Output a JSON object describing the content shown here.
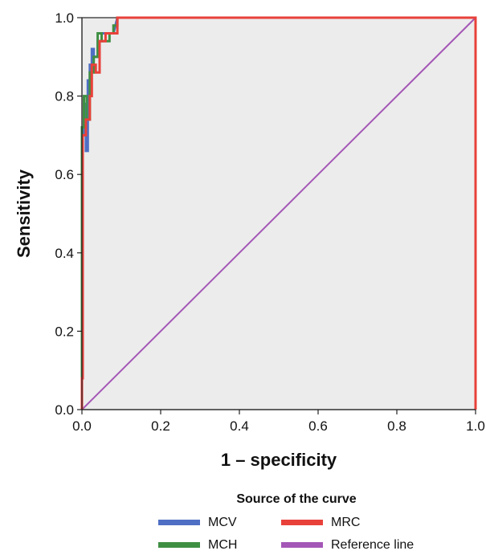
{
  "chart_data": {
    "type": "line",
    "xlabel": "1 – specificity",
    "ylabel": "Sensitivity",
    "xlim": [
      0,
      1
    ],
    "ylim": [
      0,
      1
    ],
    "x_ticks": [
      "0.0",
      "0.2",
      "0.4",
      "0.6",
      "0.8",
      "1.0"
    ],
    "y_ticks": [
      "0.0",
      "0.2",
      "0.4",
      "0.6",
      "0.8",
      "1.0"
    ],
    "grid": false,
    "legend_title": "Source of the curve",
    "legend_position": "bottom",
    "series": [
      {
        "name": "MCV",
        "color": "#4f6fc4",
        "x": [
          0,
          0,
          0.005,
          0.005,
          0.01,
          0.01,
          0.015,
          0.015,
          0.02,
          0.02,
          0.025,
          0.025,
          0.03,
          0.03,
          0.04,
          0.04,
          0.05,
          0.05,
          0.06,
          0.06,
          0.08,
          0.085,
          0.09,
          1.0
        ],
        "y": [
          0,
          0.7,
          0.7,
          0.78,
          0.78,
          0.66,
          0.66,
          0.84,
          0.84,
          0.88,
          0.88,
          0.92,
          0.92,
          0.9,
          0.9,
          0.94,
          0.94,
          0.96,
          0.96,
          0.96,
          0.96,
          0.98,
          1.0,
          1.0
        ]
      },
      {
        "name": "MCH",
        "color": "#3f8f43",
        "x": [
          0,
          0,
          0.005,
          0.005,
          0.012,
          0.012,
          0.02,
          0.02,
          0.03,
          0.03,
          0.04,
          0.04,
          0.05,
          0.05,
          0.07,
          0.07,
          0.08,
          0.08,
          0.09,
          0.09,
          1.0
        ],
        "y": [
          0,
          0.72,
          0.72,
          0.8,
          0.8,
          0.74,
          0.74,
          0.86,
          0.86,
          0.9,
          0.9,
          0.96,
          0.96,
          0.94,
          0.94,
          0.96,
          0.96,
          0.98,
          0.98,
          1.0,
          1.0
        ]
      },
      {
        "name": "MRC",
        "color": "#e8413a",
        "x": [
          0,
          0,
          0.002,
          0.002,
          0.01,
          0.01,
          0.02,
          0.02,
          0.025,
          0.025,
          0.035,
          0.035,
          0.045,
          0.045,
          0.06,
          0.06,
          0.08,
          0.08,
          0.09,
          0.09,
          1.0,
          1.0
        ],
        "y": [
          0,
          0.08,
          0.08,
          0.7,
          0.7,
          0.74,
          0.74,
          0.8,
          0.8,
          0.88,
          0.88,
          0.86,
          0.86,
          0.94,
          0.94,
          0.96,
          0.96,
          0.96,
          0.96,
          1.0,
          1.0,
          0.0
        ]
      },
      {
        "name": "Reference line",
        "color": "#a457b6",
        "x": [
          0,
          1
        ],
        "y": [
          0,
          1
        ]
      }
    ]
  }
}
